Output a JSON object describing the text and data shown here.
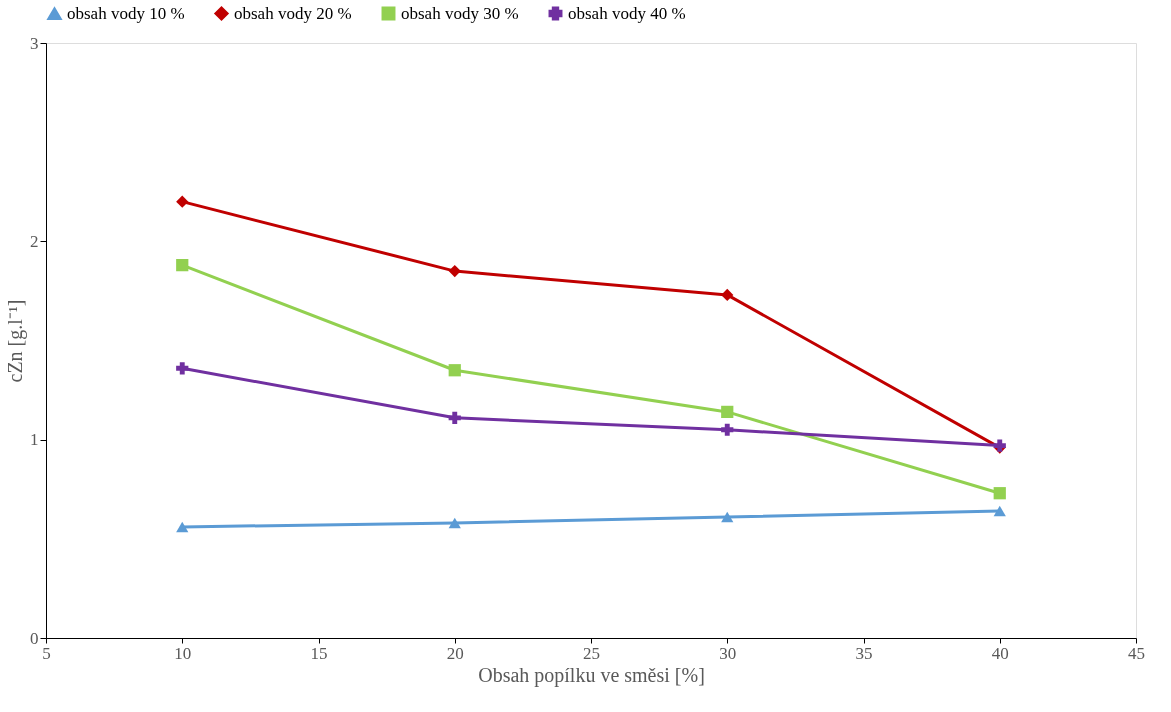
{
  "chart_data": {
    "type": "line",
    "xlabel": "Obsah popílku ve směsi [%]",
    "ylabel": "cZn [g.l⁻¹]",
    "x": [
      10,
      20,
      30,
      40
    ],
    "series": [
      {
        "name": "obsah vody 10 %",
        "color": "#5b9bd5",
        "marker": "triangle",
        "values": [
          0.56,
          0.58,
          0.61,
          0.64
        ]
      },
      {
        "name": "obsah vody 20 %",
        "color": "#c00000",
        "marker": "diamond",
        "values": [
          2.2,
          1.85,
          1.73,
          0.96
        ]
      },
      {
        "name": "obsah vody 30 %",
        "color": "#92d050",
        "marker": "square",
        "values": [
          1.88,
          1.35,
          1.14,
          0.73
        ]
      },
      {
        "name": "obsah vody 40 %",
        "color": "#7030a0",
        "marker": "cross",
        "values": [
          1.36,
          1.11,
          1.05,
          0.97
        ]
      }
    ],
    "xlim": [
      5,
      45
    ],
    "xticks": [
      5,
      10,
      15,
      20,
      25,
      30,
      35,
      40,
      45
    ],
    "ylim": [
      0,
      3
    ],
    "yticks": [
      0,
      1,
      2,
      3
    ],
    "grid": false,
    "legend": "top",
    "line_style": "solid"
  }
}
